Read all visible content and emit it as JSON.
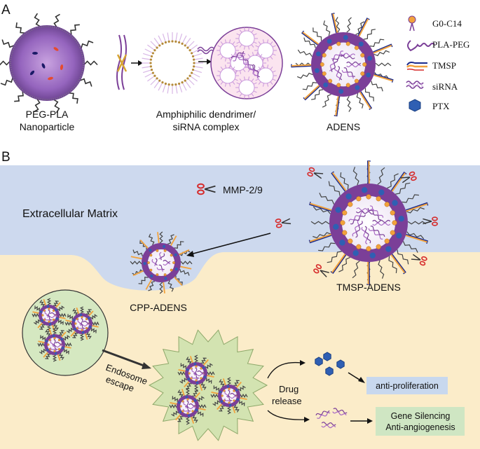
{
  "panel_a": {
    "letter": "A",
    "labels": {
      "peg_pla_line1": "PEG-PLA",
      "peg_pla_line2": "Nanoparticle",
      "complex_line1": "Amphiphilic dendrimer/",
      "complex_line2": "siRNA complex",
      "adens": "ADENS"
    },
    "legend": [
      "G0-C14",
      "PLA-PEG",
      "TMSP",
      "siRNA",
      "PTX"
    ]
  },
  "panel_b": {
    "letter": "B",
    "labels": {
      "mmp": "MMP-2/9",
      "ecm": "Extracellular Matrix",
      "cpp_adens": "CPP-ADENS",
      "tmsp_adens": "TMSP-ADENS",
      "endosome_line1": "Endosome",
      "endosome_line2": "escape",
      "drug_line1": "Drug",
      "drug_line2": "release",
      "anti_prolif": "anti-proliferation",
      "gene_line1": "Gene Silencing",
      "gene_line2": "Anti-angiogenesis"
    }
  },
  "colors": {
    "extracellular_bg": "#cdd9ee",
    "cell_bg": "#fbecc9",
    "shell_purple": "#7b3f98",
    "endosome_green": "#d5e8c1",
    "anti_prolif_box": "#c8d8ee",
    "gene_box": "#cfe6c3",
    "ptx_blue": "#2f5fb3",
    "tmsp_orange": "#f2a23c"
  }
}
